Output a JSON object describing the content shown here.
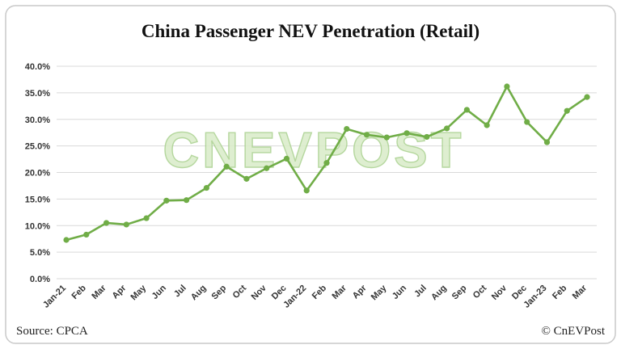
{
  "chart_data": {
    "type": "line",
    "title": "China Passenger NEV Penetration (Retail)",
    "categories": [
      "Jan-21",
      "Feb",
      "Mar",
      "Apr",
      "May",
      "Jun",
      "Jul",
      "Aug",
      "Sep",
      "Oct",
      "Nov",
      "Dec",
      "Jan-22",
      "Feb",
      "Mar",
      "Apr",
      "May",
      "Jun",
      "Jul",
      "Aug",
      "Sep",
      "Oct",
      "Nov",
      "Dec",
      "Jan-23",
      "Feb",
      "Mar"
    ],
    "values": [
      7.3,
      8.3,
      10.5,
      10.2,
      11.4,
      14.7,
      14.8,
      17.1,
      21.1,
      18.8,
      20.8,
      22.6,
      16.6,
      21.8,
      28.2,
      27.1,
      26.6,
      27.4,
      26.7,
      28.3,
      31.8,
      28.9,
      36.2,
      29.5,
      25.7,
      31.6,
      34.2
    ],
    "xlabel": "",
    "ylabel": "",
    "ylim": [
      0,
      40
    ],
    "ytick_step": 5,
    "ytick_labels": [
      "0.0%",
      "5.0%",
      "10.0%",
      "15.0%",
      "20.0%",
      "25.0%",
      "30.0%",
      "35.0%",
      "40.0%"
    ],
    "grid": true,
    "legend_position": "none",
    "line_color": "#70ad47",
    "marker_color": "#70ad47"
  },
  "watermark": "CNEVPOST",
  "footer": {
    "source": "Source: CPCA",
    "credit": "© CnEVPost"
  }
}
